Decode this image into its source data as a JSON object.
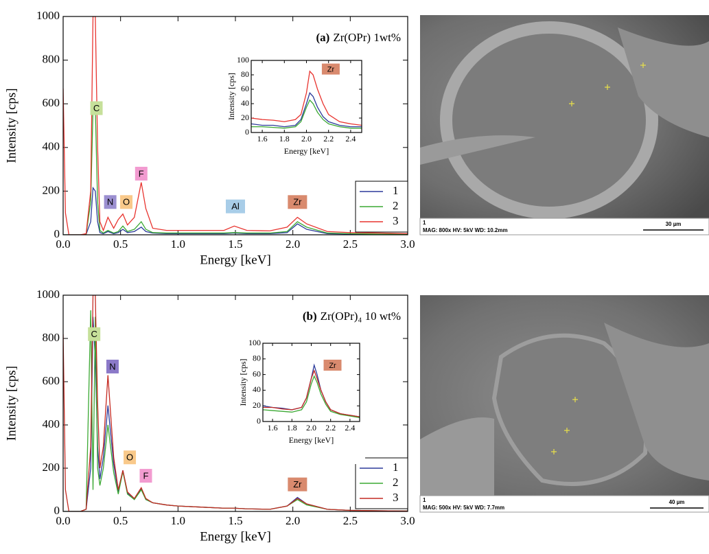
{
  "chart_data": [
    {
      "type": "line",
      "title_label": "(a)",
      "title": "Zr(OPr) 1wt%",
      "xlabel": "Energy [keV]",
      "ylabel": "Intensity [cps]",
      "xlim": [
        0,
        3
      ],
      "ylim": [
        0,
        1000
      ],
      "xticks": [
        {
          "value": 0,
          "label": "0.0"
        },
        0.5,
        {
          "value": 1,
          "label": "1.0"
        },
        1.5,
        {
          "value": 2,
          "label": "2.0"
        },
        2.5,
        {
          "value": 3,
          "label": "3.0"
        }
      ],
      "yticks": [
        0,
        200,
        400,
        600,
        800,
        1000
      ],
      "legend": "lower right",
      "x": [
        0,
        0.02,
        0.05,
        0.1,
        0.15,
        0.2,
        0.24,
        0.26,
        0.28,
        0.3,
        0.32,
        0.35,
        0.39,
        0.44,
        0.48,
        0.52,
        0.56,
        0.62,
        0.68,
        0.72,
        0.78,
        0.9,
        1.0,
        1.2,
        1.4,
        1.49,
        1.6,
        1.8,
        1.95,
        2.04,
        2.12,
        2.3,
        2.5,
        2.75,
        3.0
      ],
      "series": [
        {
          "name": "1",
          "color": "#2b3a9a",
          "values": [
            0,
            0,
            0,
            0,
            0,
            2,
            60,
            215,
            200,
            60,
            10,
            5,
            15,
            5,
            10,
            25,
            10,
            15,
            35,
            15,
            8,
            5,
            5,
            5,
            5,
            8,
            5,
            5,
            10,
            50,
            25,
            5,
            3,
            2,
            1
          ]
        },
        {
          "name": "2",
          "color": "#3aa832",
          "values": [
            0,
            0,
            0,
            0,
            0,
            2,
            150,
            570,
            580,
            150,
            20,
            8,
            20,
            8,
            15,
            40,
            15,
            25,
            60,
            25,
            10,
            8,
            8,
            8,
            8,
            10,
            8,
            8,
            15,
            60,
            35,
            8,
            5,
            3,
            2
          ]
        },
        {
          "name": "3",
          "color": "#e8332e",
          "values": [
            670,
            100,
            0,
            0,
            0,
            5,
            200,
            1000,
            1000,
            400,
            60,
            20,
            80,
            30,
            70,
            95,
            45,
            80,
            240,
            120,
            30,
            20,
            20,
            20,
            20,
            40,
            20,
            18,
            35,
            80,
            50,
            15,
            10,
            8,
            5
          ]
        }
      ],
      "annotations": [
        {
          "text": "C",
          "x": 0.29,
          "y": 580,
          "color": "#c6e09a"
        },
        {
          "text": "N",
          "x": 0.41,
          "y": 150,
          "color": "#9b8fd0"
        },
        {
          "text": "O",
          "x": 0.55,
          "y": 150,
          "color": "#f9c98a"
        },
        {
          "text": "F",
          "x": 0.68,
          "y": 280,
          "color": "#f29bd0"
        },
        {
          "text": "Al",
          "x": 1.5,
          "y": 130,
          "color": "#a8cde8"
        },
        {
          "text": "Zr",
          "x": 2.04,
          "y": 150,
          "color": "#d98a6e"
        }
      ]
    },
    {
      "type": "line",
      "xlabel": "Energy [keV]",
      "ylabel": "Intensity [cps]",
      "xlim": [
        1.5,
        2.5
      ],
      "ylim": [
        0,
        100
      ],
      "xticks": [
        1.6,
        1.8,
        {
          "value": 2,
          "label": "2.0"
        },
        2.2,
        2.4
      ],
      "yticks": [
        0,
        20,
        40,
        60,
        80,
        100
      ],
      "x": [
        1.5,
        1.6,
        1.7,
        1.8,
        1.9,
        1.95,
        2.0,
        2.03,
        2.06,
        2.1,
        2.15,
        2.2,
        2.3,
        2.4,
        2.5
      ],
      "series": [
        {
          "color": "#2b3a9a",
          "values": [
            12,
            10,
            10,
            8,
            10,
            18,
            40,
            55,
            50,
            35,
            22,
            15,
            10,
            8,
            8
          ]
        },
        {
          "color": "#3aa832",
          "values": [
            8,
            8,
            7,
            6,
            8,
            15,
            35,
            45,
            40,
            28,
            18,
            12,
            8,
            6,
            6
          ]
        },
        {
          "color": "#e8332e",
          "values": [
            20,
            18,
            17,
            15,
            18,
            25,
            55,
            85,
            80,
            60,
            40,
            25,
            15,
            12,
            10
          ]
        }
      ],
      "annotations": [
        {
          "text": "Zr",
          "x": 2.22,
          "y": 88,
          "color": "#d98a6e"
        }
      ]
    },
    {
      "type": "line",
      "title_label": "(b)",
      "title": "Zr(OPr)₄ 10 wt%",
      "xlabel": "Energy [keV]",
      "ylabel": "Intensity [cps]",
      "xlim": [
        0,
        3
      ],
      "ylim": [
        0,
        1000
      ],
      "xticks": [
        {
          "value": 0,
          "label": "0.0"
        },
        0.5,
        {
          "value": 1,
          "label": "1.0"
        },
        1.5,
        {
          "value": 2,
          "label": "2.0"
        },
        2.5,
        {
          "value": 3,
          "label": "3.0"
        }
      ],
      "yticks": [
        0,
        200,
        400,
        600,
        800,
        1000
      ],
      "legend": "lower right",
      "x": [
        0,
        0.02,
        0.05,
        0.1,
        0.15,
        0.2,
        0.24,
        0.26,
        0.28,
        0.3,
        0.32,
        0.35,
        0.39,
        0.44,
        0.48,
        0.52,
        0.56,
        0.62,
        0.68,
        0.72,
        0.78,
        0.9,
        1.0,
        1.2,
        1.4,
        1.49,
        1.6,
        1.8,
        1.95,
        2.04,
        2.12,
        2.3,
        2.5,
        2.75,
        3.0
      ],
      "series": [
        {
          "name": "1",
          "color": "#2b3a9a",
          "values": [
            0,
            0,
            0,
            0,
            0,
            10,
            200,
            900,
            700,
            300,
            150,
            250,
            490,
            220,
            90,
            190,
            85,
            55,
            105,
            55,
            40,
            30,
            25,
            20,
            15,
            15,
            12,
            10,
            25,
            65,
            35,
            10,
            5,
            3,
            2
          ]
        },
        {
          "name": "2",
          "color": "#3aa832",
          "values": [
            0,
            0,
            0,
            0,
            0,
            10,
            930,
            100,
            900,
            200,
            120,
            200,
            400,
            180,
            80,
            185,
            80,
            55,
            100,
            55,
            40,
            30,
            25,
            20,
            15,
            15,
            12,
            10,
            25,
            55,
            30,
            10,
            5,
            3,
            2
          ]
        },
        {
          "name": "3",
          "color": "#c42a22",
          "values": [
            820,
            100,
            0,
            0,
            0,
            10,
            300,
            1000,
            1000,
            500,
            200,
            300,
            630,
            250,
            100,
            190,
            90,
            60,
            110,
            60,
            40,
            30,
            25,
            20,
            15,
            15,
            12,
            10,
            25,
            60,
            35,
            10,
            5,
            3,
            2
          ]
        }
      ],
      "annotations": [
        {
          "text": "C",
          "x": 0.27,
          "y": 820,
          "color": "#c6e09a"
        },
        {
          "text": "N",
          "x": 0.43,
          "y": 670,
          "color": "#8b79c8"
        },
        {
          "text": "O",
          "x": 0.58,
          "y": 250,
          "color": "#f9c98a"
        },
        {
          "text": "F",
          "x": 0.72,
          "y": 165,
          "color": "#f29bd0"
        },
        {
          "text": "Zr",
          "x": 2.04,
          "y": 125,
          "color": "#d98a6e"
        }
      ]
    },
    {
      "type": "line",
      "xlabel": "Energy [keV]",
      "ylabel": "Intensity [cps]",
      "xlim": [
        1.5,
        2.5
      ],
      "ylim": [
        0,
        100
      ],
      "xticks": [
        1.6,
        1.8,
        {
          "value": 2,
          "label": "2.0"
        },
        2.2,
        2.4
      ],
      "yticks": [
        0,
        20,
        40,
        60,
        80,
        100
      ],
      "x": [
        1.5,
        1.6,
        1.7,
        1.8,
        1.9,
        1.95,
        2.0,
        2.03,
        2.06,
        2.1,
        2.15,
        2.2,
        2.3,
        2.4,
        2.5
      ],
      "series": [
        {
          "color": "#2b3a9a",
          "values": [
            20,
            18,
            17,
            15,
            18,
            30,
            55,
            72,
            60,
            40,
            25,
            15,
            10,
            8,
            6
          ]
        },
        {
          "color": "#3aa832",
          "values": [
            15,
            14,
            13,
            12,
            15,
            25,
            48,
            58,
            50,
            35,
            22,
            13,
            9,
            7,
            5
          ]
        },
        {
          "color": "#c42a22",
          "values": [
            18,
            18,
            16,
            15,
            18,
            30,
            55,
            65,
            55,
            40,
            25,
            15,
            10,
            8,
            6
          ]
        }
      ],
      "annotations": [
        {
          "text": "Zr",
          "x": 2.22,
          "y": 72,
          "color": "#d98a6e"
        }
      ]
    }
  ],
  "micrographs": [
    {
      "index": "1",
      "caption": "MAG: 800x  HV: 5kV  WD: 10.2mm",
      "scale": "30 µm"
    },
    {
      "index": "1",
      "caption": "MAG: 500x  HV: 5kV  WD: 7.7mm",
      "scale": "40 µm"
    }
  ]
}
